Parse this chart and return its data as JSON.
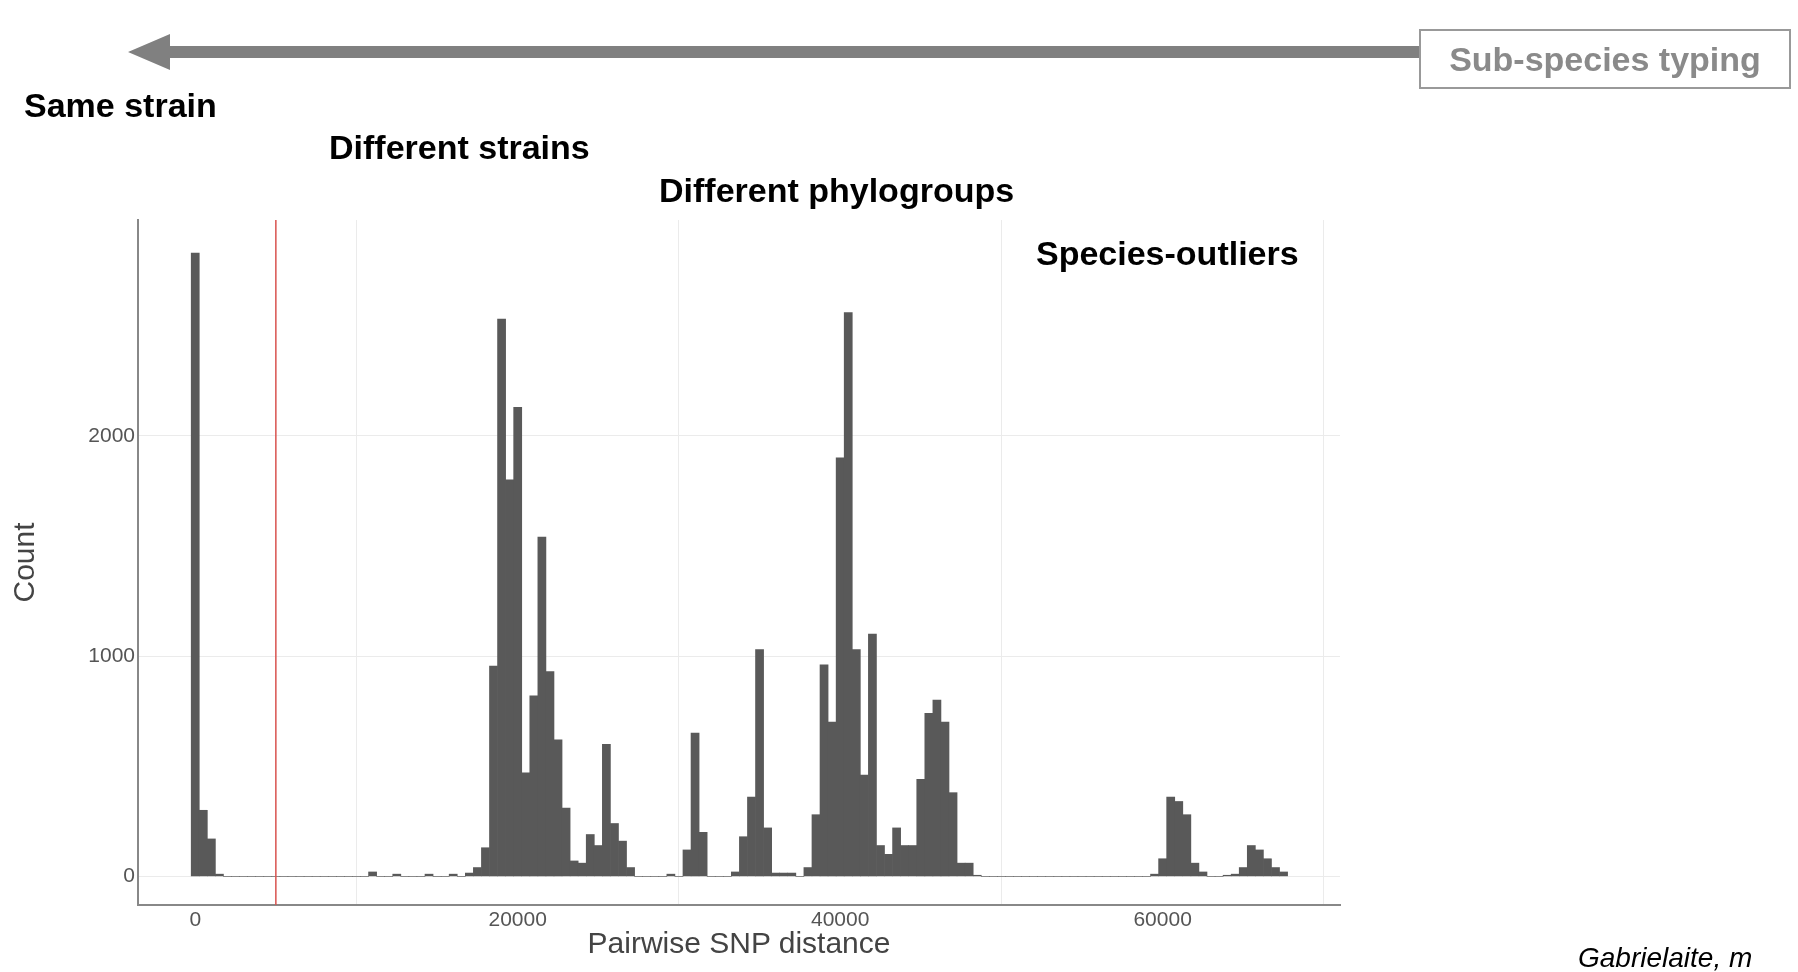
{
  "chart_data": {
    "type": "histogram",
    "xlabel": "Pairwise SNP distance",
    "ylabel": "Count",
    "annotations": [
      "Sub-species typing",
      "Same strain",
      "Different strains",
      "Different phylogroups",
      "Species-outliers",
      "Gabrielaite, m"
    ],
    "color": "#595959",
    "bins": [
      -250,
      250,
      750,
      1250,
      1750,
      2250,
      2750,
      3250,
      3750,
      4250,
      4750,
      5250,
      5750,
      6250,
      6750,
      7250,
      7750,
      8250,
      8750,
      9250,
      9750,
      10250,
      10750,
      11250,
      11750,
      12250,
      12750,
      13250,
      13750,
      14250,
      14750,
      15250,
      15750,
      16250,
      16750,
      17250,
      17750,
      18250,
      18750,
      19250,
      19750,
      20250,
      20750,
      21250,
      21750,
      22250,
      22750,
      23250,
      23750,
      24250,
      24750,
      25250,
      25750,
      26250,
      26750,
      27250,
      27750,
      28250,
      28750,
      29250,
      29750,
      30250,
      30750,
      31250,
      31750,
      32250,
      32750,
      33250,
      33750,
      34250,
      34750,
      35250,
      35750,
      36250,
      36750,
      37250,
      37750,
      38250,
      38750,
      39250,
      39750,
      40250,
      40750,
      41250,
      41750,
      42250,
      42750,
      43250,
      43750,
      44250,
      44750,
      45250,
      45750,
      46250,
      46750,
      47250,
      47750,
      48250,
      48750,
      49250,
      49750,
      50250,
      50750,
      51250,
      51750,
      52250,
      52750,
      53250,
      53750,
      54250,
      54750,
      55250,
      55750,
      56250,
      56750,
      57250,
      57750,
      58250,
      58750,
      59250,
      59750,
      60250,
      60750,
      61250,
      61750,
      62250,
      62750,
      63250,
      63750,
      64250,
      64750,
      65250,
      65750,
      66250,
      66750,
      67250,
      67750
    ],
    "values": [
      2830,
      300,
      170,
      10,
      0,
      0,
      0,
      0,
      0,
      0,
      0,
      0,
      0,
      0,
      0,
      0,
      0,
      0,
      0,
      0,
      0,
      0,
      20,
      0,
      0,
      10,
      0,
      0,
      0,
      10,
      0,
      0,
      10,
      0,
      15,
      40,
      130,
      955,
      2530,
      1800,
      2130,
      470,
      820,
      1540,
      930,
      620,
      310,
      70,
      60,
      190,
      140,
      600,
      240,
      160,
      40,
      0,
      0,
      0,
      0,
      10,
      0,
      120,
      650,
      200,
      0,
      0,
      0,
      20,
      180,
      360,
      1030,
      220,
      15,
      15,
      15,
      0,
      40,
      280,
      960,
      700,
      1900,
      2560,
      1030,
      460,
      1100,
      140,
      100,
      220,
      140,
      140,
      440,
      740,
      800,
      700,
      380,
      60,
      60,
      5,
      0,
      0,
      0,
      0,
      0,
      0,
      0,
      0,
      0,
      0,
      0,
      0,
      0,
      0,
      0,
      0,
      0,
      0,
      0,
      0,
      0,
      10,
      80,
      360,
      340,
      280,
      60,
      20,
      0,
      0,
      5,
      10,
      40,
      140,
      120,
      80,
      40,
      20
    ],
    "xlim": [
      -3550,
      71000
    ],
    "ylim": [
      -130,
      2980
    ],
    "xticks": [
      0,
      20000,
      40000,
      60000
    ],
    "yticks": [
      0,
      1000,
      2000
    ],
    "grid": true,
    "ref_lines": [
      {
        "axis": "x",
        "value": 5000,
        "color": "#d9534f"
      }
    ]
  }
}
